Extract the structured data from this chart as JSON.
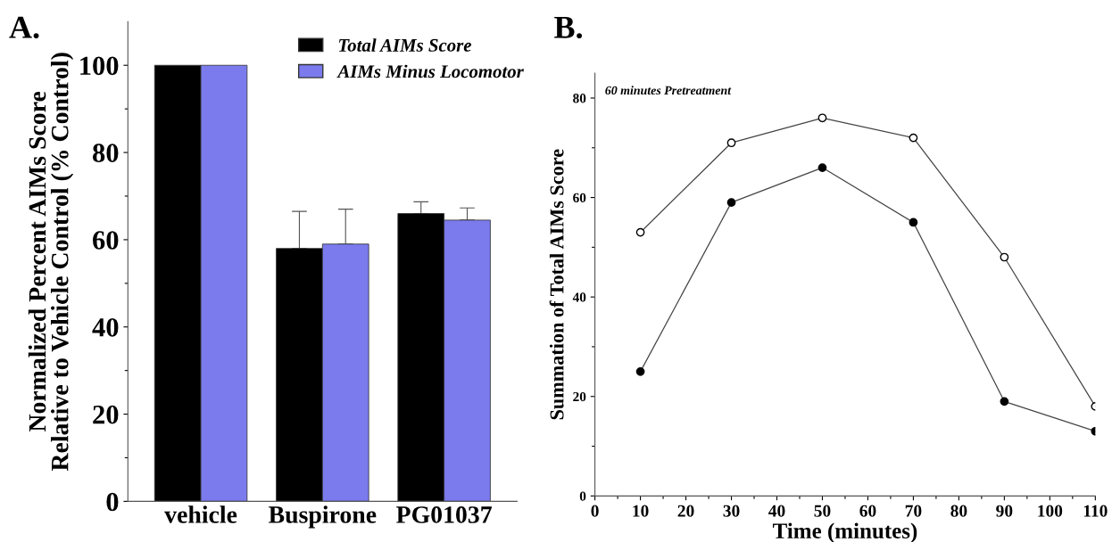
{
  "chart_data": [
    {
      "type": "bar",
      "title": "A.",
      "ylabel": "Normalized Percent AIMs Score\nRelative to Vehicle Control (% Control)",
      "categories": [
        "vehicle",
        "Buspirone",
        "PG01037"
      ],
      "series": [
        {
          "name": "Total AIMs Score",
          "color": "#000000",
          "values": [
            100,
            58,
            66
          ],
          "errors": [
            null,
            [
              58,
              66.5
            ],
            [
              66,
              68.7
            ]
          ]
        },
        {
          "name": "AIMs Minus Locomotor",
          "color": "#7b7bee",
          "values": [
            100,
            59,
            64.5
          ],
          "errors": [
            null,
            [
              59,
              67
            ],
            [
              64.5,
              67.3
            ]
          ]
        }
      ],
      "ylim": [
        0,
        110
      ],
      "yticks": [
        0,
        {
          "value": 10,
          "label": null
        },
        20,
        {
          "value": 30,
          "label": null
        },
        40,
        {
          "value": 50,
          "label": null
        },
        60,
        {
          "value": 70,
          "label": null
        },
        80,
        {
          "value": 90,
          "label": null
        },
        100
      ],
      "legend": "top right"
    },
    {
      "type": "line",
      "title": "B.",
      "xlabel": "Time (minutes)",
      "ylabel": "Summation of Total AIMs Score",
      "annotations": [
        "60 minutes Pretreatment"
      ],
      "x": [
        10,
        30,
        50,
        70,
        90,
        110
      ],
      "marker": "circle",
      "series": [
        {
          "color": "#ffffff",
          "values": [
            53,
            71,
            76,
            72,
            48,
            18
          ]
        },
        {
          "color": "#000000",
          "values": [
            25,
            59,
            66,
            55,
            19,
            13
          ]
        }
      ],
      "xlim": [
        0,
        110
      ],
      "xticks": [
        0,
        {
          "value": 5,
          "label": null
        },
        10,
        {
          "value": 15,
          "label": null
        },
        20,
        {
          "value": 25,
          "label": null
        },
        30,
        {
          "value": 35,
          "label": null
        },
        40,
        {
          "value": 45,
          "label": null
        },
        50,
        {
          "value": 55,
          "label": null
        },
        60,
        {
          "value": 65,
          "label": null
        },
        70,
        {
          "value": 75,
          "label": null
        },
        80,
        {
          "value": 85,
          "label": null
        },
        90,
        {
          "value": 95,
          "label": null
        },
        100,
        {
          "value": 105,
          "label": null
        },
        110
      ],
      "ylim": [
        0,
        85
      ],
      "yticks": [
        0,
        {
          "value": 10,
          "label": null
        },
        20,
        {
          "value": 30,
          "label": null
        },
        40,
        {
          "value": 50,
          "label": null
        },
        60,
        {
          "value": 70,
          "label": null
        },
        80
      ]
    }
  ]
}
